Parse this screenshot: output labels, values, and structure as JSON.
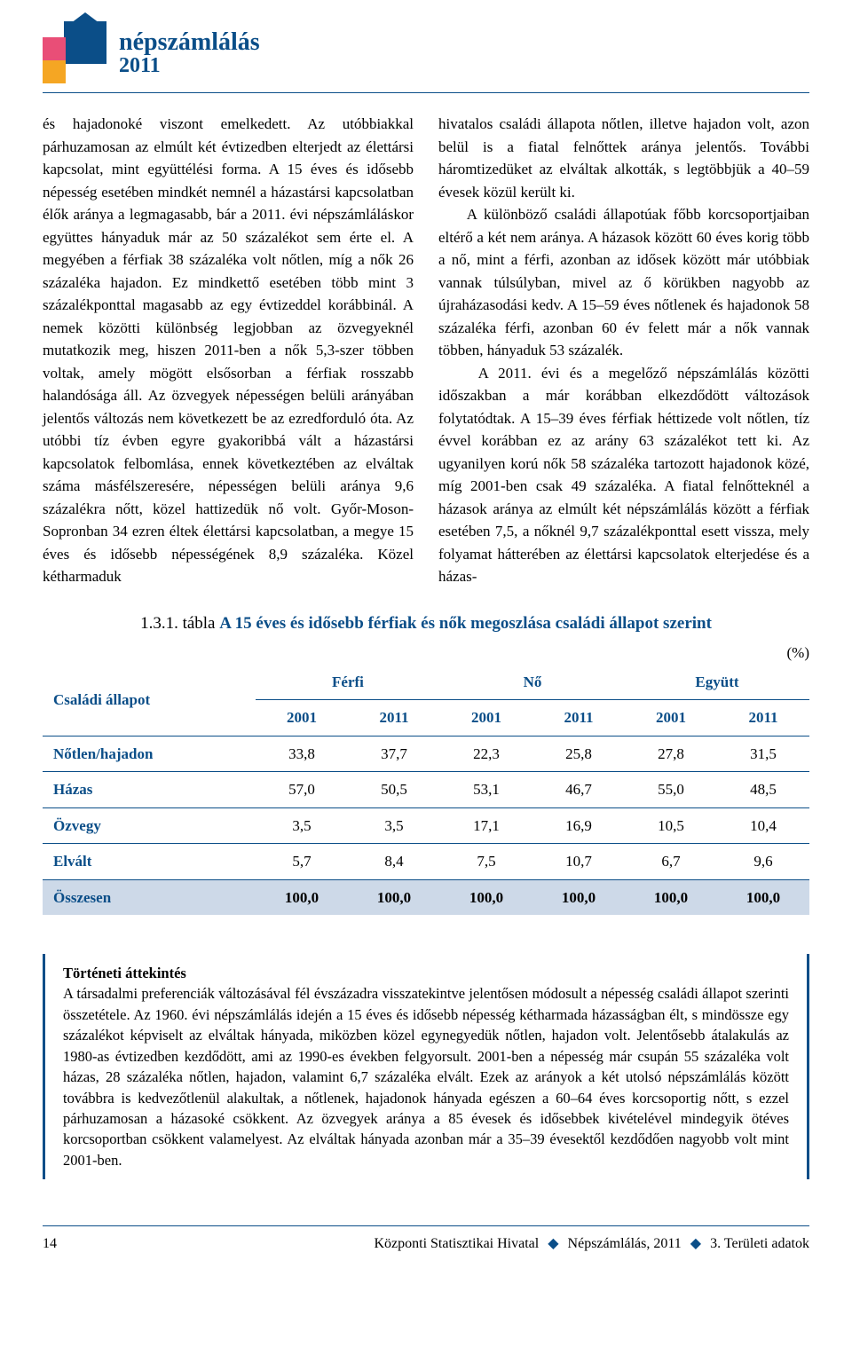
{
  "logo": {
    "title": "népszámlálás",
    "year": "2011"
  },
  "body": {
    "left": "és hajadonoké viszont emelkedett. Az utóbbiakkal párhuzamosan az elmúlt két évtizedben elterjedt az élettársi kapcsolat, mint együttélési forma. A 15 éves és idősebb népesség esetében mindkét nemnél a házastársi kapcsolatban élők aránya a legmagasabb, bár a 2011. évi népszámláláskor együttes hányaduk már az 50 százalékot sem érte el. A megyében a férfiak 38 százaléka volt nőtlen, míg a nők 26 százaléka hajadon. Ez mindkettő esetében több mint 3 százalékponttal magasabb az egy évtizeddel korábbinál. A nemek közötti különbség legjobban az özvegyeknél mutatkozik meg, hiszen 2011-ben a nők 5,3-szer többen voltak, amely mögött elsősorban a férfiak rosszabb halandósága áll. Az özvegyek népességen belüli arányában jelentős változás nem következett be az ezredforduló óta. Az utóbbi tíz évben egyre gyakoribbá vált a házastársi kapcsolatok felbomlása, ennek következtében az elváltak száma másfélszeresére, népességen belüli aránya 9,6 százalékra nőtt, közel hattizedük nő volt. Győr-Moson-Sopronban 34 ezren éltek élettársi kapcsolatban, a megye 15 éves és idősebb népességének 8,9 százaléka. Közel kétharmaduk",
    "right": "hivatalos családi állapota nőtlen, illetve hajadon volt, azon belül is a fiatal felnőttek aránya jelentős. További háromtizedüket az elváltak alkották, s legtöbbjük a 40–59 évesek közül került ki.\n    A különböző családi állapotúak főbb korcsoportjaiban eltérő a két nem aránya. A házasok között 60 éves korig több a nő, mint a férfi, azonban az idősek között már utóbbiak vannak túlsúlyban, mivel az ő körükben nagyobb az újraházasodási kedv. A 15–59 éves nőtlenek és hajadonok 58 százaléka férfi, azonban 60 év felett már a nők vannak többen, hányaduk 53 százalék.\n    A 2011. évi és a megelőző népszámlálás közötti időszakban a már korábban elkezdődött változások folytatódtak. A 15–39 éves férfiak héttizede volt nőtlen, tíz évvel korábban ez az arány 63 százalékot tett ki. Az ugyanilyen korú nők 58 százaléka tartozott hajadonok közé, míg 2001-ben csak 49 százaléka. A fiatal felnőtteknél a házasok aránya az elmúlt két népszámlálás között a férfiak esetében 7,5, a nőknél 9,7 százalékponttal esett vissza, mely folyamat hátterében az élettársi kapcsolatok elterjedése és a házas-"
  },
  "table": {
    "caption_num": "1.3.1. tábla ",
    "caption_text": "A 15 éves és idősebb férfiak és nők megoszlása családi állapot szerint",
    "unit": "(%)",
    "rowhead": "Családi állapot",
    "groups": [
      "Férfi",
      "Nő",
      "Együtt"
    ],
    "years": [
      "2001",
      "2011",
      "2001",
      "2011",
      "2001",
      "2011"
    ],
    "rows": [
      {
        "label": "Nőtlen/hajadon",
        "vals": [
          "33,8",
          "37,7",
          "22,3",
          "25,8",
          "27,8",
          "31,5"
        ]
      },
      {
        "label": "Házas",
        "vals": [
          "57,0",
          "50,5",
          "53,1",
          "46,7",
          "55,0",
          "48,5"
        ]
      },
      {
        "label": "Özvegy",
        "vals": [
          "3,5",
          "3,5",
          "17,1",
          "16,9",
          "10,5",
          "10,4"
        ]
      },
      {
        "label": "Elvált",
        "vals": [
          "5,7",
          "8,4",
          "7,5",
          "10,7",
          "6,7",
          "9,6"
        ]
      }
    ],
    "total": {
      "label": "Összesen",
      "vals": [
        "100,0",
        "100,0",
        "100,0",
        "100,0",
        "100,0",
        "100,0"
      ]
    }
  },
  "history": {
    "title": "Történeti áttekintés",
    "text": "A társadalmi preferenciák változásával fél évszázadra visszatekintve jelentősen módosult a népesség családi állapot szerinti összetétele. Az 1960. évi népszámlálás idején a 15 éves és idősebb népesség kétharmada házasságban élt, s mindössze egy százalékot képviselt az elváltak hányada, miközben közel egynegyedük nőtlen, hajadon volt. Jelentősebb átalakulás az 1980-as évtizedben kezdődött, ami az 1990-es években felgyorsult. 2001-ben a népesség már csupán 55 százaléka volt házas, 28 százaléka nőtlen, hajadon, valamint 6,7 százaléka elvált. Ezek az arányok a két utolsó népszámlálás között továbbra is kedvezőtlenül alakultak, a nőtlenek, hajadonok hányada egészen a 60–64 éves korcsoportig nőtt, s ezzel párhuzamosan a házasoké csökkent. Az özvegyek aránya a 85 évesek és idősebbek kivételével mindegyik ötéves korcsoportban csökkent valamelyest. Az elváltak hányada azonban már a 35–39 évesektől kezdődően nagyobb volt mint 2001-ben."
  },
  "footer": {
    "page": "14",
    "center": "Központi Statisztikai Hivatal",
    "right1": "Népszámlálás, 2011",
    "right2": "3. Területi adatok"
  }
}
